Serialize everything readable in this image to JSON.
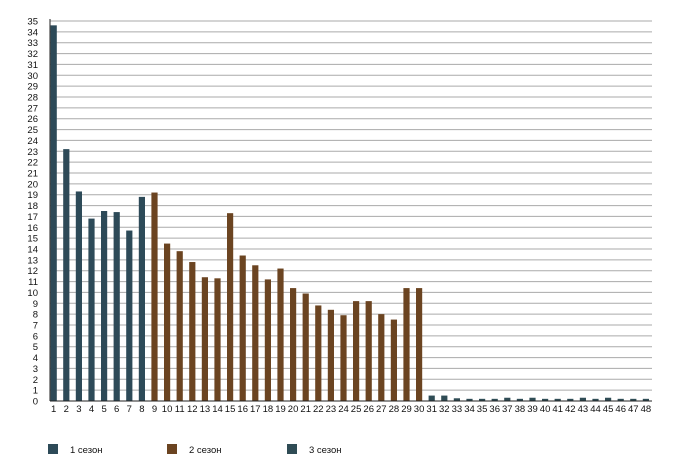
{
  "chart_data": {
    "type": "bar",
    "title": "",
    "xlabel": "",
    "ylabel": "",
    "ylim": [
      0,
      35
    ],
    "ytick_step": 1,
    "grid": true,
    "legend_position": "bottom",
    "categories": [
      "1",
      "2",
      "3",
      "4",
      "5",
      "6",
      "7",
      "8",
      "9",
      "10",
      "11",
      "12",
      "13",
      "14",
      "15",
      "16",
      "17",
      "18",
      "19",
      "20",
      "21",
      "22",
      "23",
      "24",
      "25",
      "26",
      "27",
      "28",
      "29",
      "30",
      "31",
      "32",
      "33",
      "34",
      "35",
      "36",
      "37",
      "38",
      "39",
      "40",
      "41",
      "42",
      "43",
      "44",
      "45",
      "46",
      "47",
      "48"
    ],
    "series": [
      {
        "name": "1 сезон",
        "color": "#2d4a58",
        "x": [
          1,
          2,
          3,
          4,
          5,
          6,
          7,
          8
        ],
        "values": [
          34.6,
          23.2,
          19.3,
          16.8,
          17.5,
          17.4,
          15.7,
          18.8
        ]
      },
      {
        "name": "2 сезон",
        "color": "#6b4421",
        "x": [
          9,
          10,
          11,
          12,
          13,
          14,
          15,
          16,
          17,
          18,
          19,
          20,
          21,
          22,
          23,
          24,
          25,
          26,
          27,
          28,
          29,
          30
        ],
        "values": [
          19.2,
          14.5,
          13.8,
          12.8,
          11.4,
          11.3,
          17.3,
          13.4,
          12.5,
          11.2,
          12.2,
          10.4,
          9.9,
          8.8,
          8.4,
          7.9,
          9.2,
          9.2,
          8.0,
          7.5,
          10.4,
          10.4
        ]
      },
      {
        "name": "3 сезон",
        "color": "#2f4c55",
        "x": [
          31,
          32,
          33,
          34,
          35,
          36,
          37,
          38,
          39,
          40,
          41,
          42,
          43,
          44,
          45,
          46,
          47,
          48
        ],
        "values": [
          0.5,
          0.5,
          0.25,
          0.2,
          0.2,
          0.2,
          0.3,
          0.2,
          0.3,
          0.2,
          0.2,
          0.2,
          0.3,
          0.2,
          0.3,
          0.2,
          0.2,
          0.2
        ]
      }
    ]
  }
}
